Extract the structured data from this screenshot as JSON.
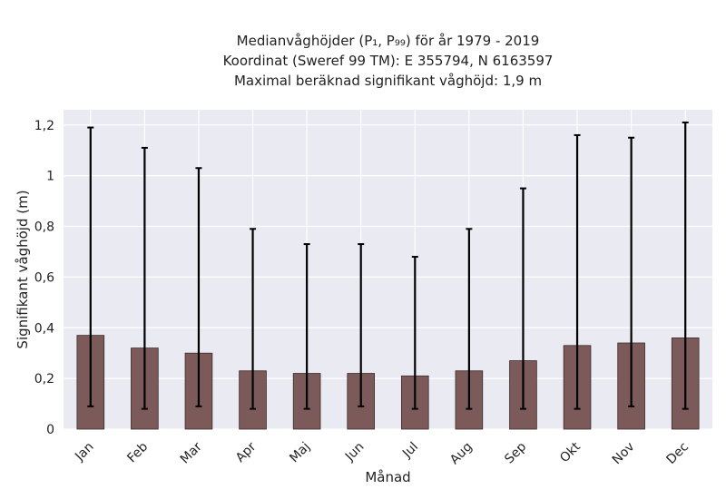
{
  "chart_data": {
    "type": "bar",
    "title_lines": [
      "Medianvåghöjder (P₁, P₉₉) för år 1979 - 2019",
      "Koordinat (Sweref 99 TM): E 355794, N 6163597",
      "Maximal beräknad signifikant våghöjd: 1,9 m"
    ],
    "xlabel": "Månad",
    "ylabel": "Signifikant våghöjd (m)",
    "categories": [
      "Jan",
      "Feb",
      "Mar",
      "Apr",
      "Maj",
      "Jun",
      "Jul",
      "Aug",
      "Sep",
      "Okt",
      "Nov",
      "Dec"
    ],
    "values": [
      0.37,
      0.32,
      0.3,
      0.23,
      0.22,
      0.22,
      0.21,
      0.23,
      0.27,
      0.33,
      0.34,
      0.36
    ],
    "err_low": [
      0.09,
      0.08,
      0.09,
      0.08,
      0.08,
      0.09,
      0.08,
      0.08,
      0.08,
      0.08,
      0.09,
      0.08
    ],
    "err_high": [
      1.19,
      1.11,
      1.03,
      0.79,
      0.73,
      0.73,
      0.68,
      0.79,
      0.95,
      1.16,
      1.15,
      1.21
    ],
    "ylim": [
      0,
      1.26
    ],
    "yticks": [
      0,
      0.2,
      0.4,
      0.6,
      0.8,
      1,
      1.2
    ],
    "ytick_labels": [
      "0",
      "0,2",
      "0,4",
      "0,6",
      "0,8",
      "1",
      "1,2"
    ],
    "grid": true,
    "colors": {
      "bar": "#7d5a5a",
      "bar_edge": "#3a2a2a",
      "background": "#eaeaf2",
      "grid": "#ffffff",
      "error": "#000000"
    }
  }
}
